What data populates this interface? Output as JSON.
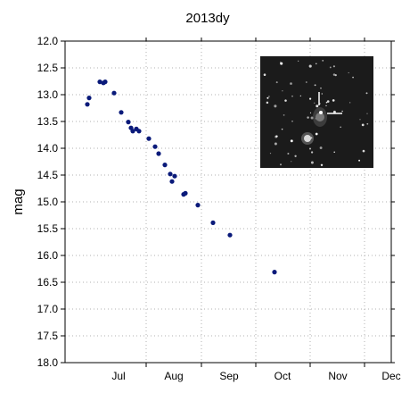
{
  "chart_data": {
    "type": "scatter",
    "title": "2013dy",
    "xlabel": "",
    "ylabel": "mag",
    "y_inverted": true,
    "ylim": [
      12.0,
      18.0
    ],
    "y_ticks": [
      "12.0",
      "12.5",
      "13.0",
      "13.5",
      "14.0",
      "14.5",
      "15.0",
      "15.5",
      "16.0",
      "16.5",
      "17.0",
      "17.5",
      "18.0"
    ],
    "x_unit": "day of year 2013",
    "xlim": [
      166,
      349
    ],
    "x_month_labels": [
      {
        "label": "Jul",
        "day": 196
      },
      {
        "label": "Aug",
        "day": 227
      },
      {
        "label": "Sep",
        "day": 258
      },
      {
        "label": "Oct",
        "day": 288
      },
      {
        "label": "Nov",
        "day": 319
      },
      {
        "label": "Dec",
        "day": 349
      }
    ],
    "grid": true,
    "grid_style": "dotted",
    "marker_color": "#0a1a7a",
    "inset": {
      "type": "image",
      "description_icon": "supernova-field-image",
      "background": "#1b1b1b"
    },
    "series": [
      {
        "name": "",
        "points": [
          {
            "x": 178.5,
            "y": 13.18
          },
          {
            "x": 179.5,
            "y": 13.06
          },
          {
            "x": 185.5,
            "y": 12.76
          },
          {
            "x": 187.5,
            "y": 12.78
          },
          {
            "x": 188.5,
            "y": 12.76
          },
          {
            "x": 193.5,
            "y": 12.97
          },
          {
            "x": 197.5,
            "y": 13.33
          },
          {
            "x": 201.5,
            "y": 13.51
          },
          {
            "x": 203.0,
            "y": 13.62
          },
          {
            "x": 204.0,
            "y": 13.68
          },
          {
            "x": 206.0,
            "y": 13.64
          },
          {
            "x": 207.5,
            "y": 13.68
          },
          {
            "x": 213.0,
            "y": 13.82
          },
          {
            "x": 216.5,
            "y": 13.97
          },
          {
            "x": 218.5,
            "y": 14.1
          },
          {
            "x": 222.0,
            "y": 14.31
          },
          {
            "x": 225.0,
            "y": 14.48
          },
          {
            "x": 226.0,
            "y": 14.62
          },
          {
            "x": 227.5,
            "y": 14.52
          },
          {
            "x": 232.5,
            "y": 14.86
          },
          {
            "x": 233.5,
            "y": 14.84
          },
          {
            "x": 240.5,
            "y": 15.06
          },
          {
            "x": 249.0,
            "y": 15.39
          },
          {
            "x": 258.5,
            "y": 15.62
          },
          {
            "x": 283.5,
            "y": 16.31
          }
        ]
      }
    ]
  }
}
